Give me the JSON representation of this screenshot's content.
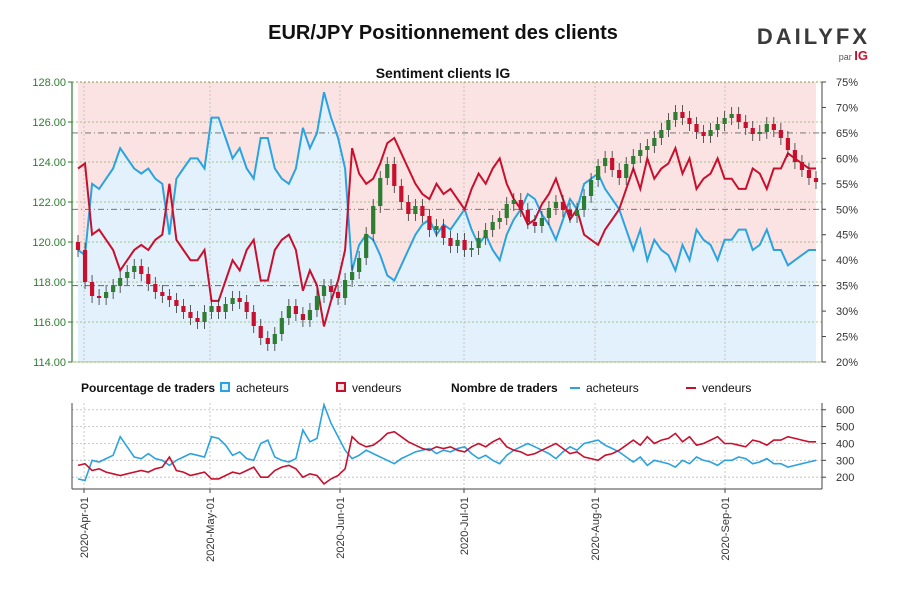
{
  "header": {
    "title": "EUR/JPY Positionnement des clients",
    "subtitle": "Sentiment clients IG",
    "logo_brand": "DAILYFX",
    "logo_sub": "par",
    "logo_ig": "IG"
  },
  "colors": {
    "buyers": "#2ba3e0",
    "sellers": "#c8102e",
    "buyers_fill": "#e2f1fb",
    "sellers_fill": "#fbe3e3",
    "candle_up": "#2e7d32",
    "candle_down": "#c8102e",
    "left_axis": "#2e7d32"
  },
  "legend": {
    "pct_title": "Pourcentage de traders",
    "pct_buyers": "acheteurs",
    "pct_sellers": "vendeurs",
    "count_title": "Nombre de traders",
    "count_buyers": "acheteurs",
    "count_sellers": "vendeurs"
  },
  "chart_data": [
    {
      "type": "candlestick",
      "title": "Sentiment clients IG",
      "price_axis": {
        "ylim": [
          114,
          128
        ],
        "ticks": [
          "114.00",
          "116.00",
          "118.00",
          "120.00",
          "122.00",
          "124.00",
          "126.00",
          "128.00"
        ]
      },
      "pct_axis": {
        "ylim": [
          20,
          75
        ],
        "ticks": [
          "20%",
          "25%",
          "30%",
          "35%",
          "40%",
          "45%",
          "50%",
          "55%",
          "60%",
          "65%",
          "70%",
          "75%"
        ]
      },
      "x_ticks": [
        "2020-Apr-01",
        "2020-May-01",
        "2020-Jun-01",
        "2020-Jul-01",
        "2020-Aug-01",
        "2020-Sep-01"
      ],
      "close": [
        119.6,
        118.0,
        117.3,
        117.2,
        117.5,
        117.8,
        118.2,
        118.5,
        118.8,
        118.4,
        117.9,
        117.5,
        117.3,
        117.1,
        116.8,
        116.5,
        116.2,
        116.0,
        116.5,
        116.8,
        116.5,
        116.9,
        117.2,
        117.0,
        116.5,
        115.8,
        115.2,
        114.9,
        115.4,
        116.2,
        116.8,
        116.4,
        116.1,
        116.6,
        117.3,
        117.8,
        117.5,
        117.2,
        118.1,
        118.5,
        119.2,
        120.4,
        121.8,
        123.2,
        123.9,
        122.8,
        122.0,
        121.4,
        121.8,
        121.3,
        120.6,
        120.8,
        120.2,
        119.8,
        120.1,
        119.6,
        119.7,
        120.2,
        120.6,
        121.0,
        121.2,
        121.9,
        122.1,
        121.6,
        121.0,
        120.8,
        121.2,
        121.7,
        122.0,
        121.6,
        121.3,
        121.6,
        122.3,
        123.1,
        123.8,
        124.2,
        123.6,
        123.2,
        123.9,
        124.3,
        124.6,
        124.8,
        125.2,
        125.6,
        126.1,
        126.5,
        126.2,
        125.9,
        125.5,
        125.3,
        125.6,
        125.9,
        126.2,
        126.4,
        126.0,
        125.7,
        125.4,
        125.5,
        125.9,
        125.6,
        125.2,
        124.6,
        124.0,
        123.6,
        123.2,
        123.0
      ],
      "pct_buyers": [
        42,
        41,
        55,
        54,
        56,
        58,
        62,
        60,
        58,
        57,
        58,
        56,
        55,
        45,
        56,
        58,
        60,
        60,
        58,
        68,
        68,
        64,
        60,
        62,
        58,
        56,
        64,
        64,
        58,
        56,
        55,
        58,
        66,
        62,
        65,
        73,
        68,
        64,
        58,
        38,
        43,
        45,
        44,
        41,
        37,
        36,
        39,
        42,
        45,
        47,
        48,
        45,
        47,
        46,
        48,
        50,
        46,
        43,
        45,
        42,
        40,
        45,
        48,
        50,
        53,
        52,
        49,
        47,
        44,
        48,
        52,
        50,
        55,
        56,
        57,
        54,
        52,
        50,
        46,
        42,
        46,
        40,
        44,
        42,
        41,
        38,
        43,
        40,
        46,
        44,
        43,
        40,
        44,
        44,
        46,
        46,
        42,
        43,
        46,
        42,
        42,
        39,
        40,
        41,
        42,
        42
      ],
      "pct_sellers": [
        58,
        59,
        45,
        46,
        44,
        42,
        38,
        40,
        42,
        43,
        42,
        44,
        45,
        55,
        44,
        42,
        40,
        40,
        42,
        32,
        32,
        36,
        40,
        38,
        42,
        44,
        36,
        36,
        42,
        44,
        45,
        42,
        34,
        38,
        35,
        27,
        32,
        36,
        42,
        62,
        57,
        55,
        56,
        59,
        63,
        64,
        61,
        58,
        55,
        53,
        52,
        55,
        53,
        54,
        52,
        50,
        54,
        57,
        55,
        58,
        60,
        55,
        52,
        50,
        47,
        48,
        51,
        53,
        56,
        52,
        48,
        50,
        45,
        44,
        43,
        46,
        48,
        50,
        54,
        58,
        54,
        60,
        56,
        58,
        59,
        62,
        57,
        60,
        54,
        56,
        57,
        60,
        56,
        56,
        54,
        54,
        58,
        57,
        54,
        58,
        58,
        61,
        60,
        59,
        58,
        58
      ]
    },
    {
      "type": "line",
      "title": "Nombre de traders",
      "ylim": [
        130,
        640
      ],
      "ticks": [
        "200",
        "300",
        "400",
        "500",
        "600"
      ],
      "series": [
        {
          "name": "acheteurs",
          "values": [
            190,
            180,
            300,
            290,
            310,
            330,
            440,
            380,
            320,
            310,
            340,
            310,
            300,
            270,
            300,
            320,
            340,
            330,
            320,
            440,
            430,
            390,
            330,
            350,
            310,
            300,
            400,
            420,
            320,
            300,
            290,
            310,
            480,
            410,
            430,
            630,
            520,
            440,
            360,
            310,
            330,
            360,
            340,
            320,
            300,
            280,
            310,
            330,
            350,
            360,
            370,
            340,
            360,
            350,
            370,
            380,
            340,
            310,
            330,
            300,
            280,
            330,
            360,
            380,
            400,
            380,
            360,
            340,
            310,
            350,
            380,
            360,
            400,
            410,
            420,
            390,
            370,
            350,
            320,
            290,
            320,
            270,
            300,
            290,
            280,
            260,
            300,
            280,
            320,
            300,
            290,
            270,
            300,
            300,
            320,
            310,
            280,
            290,
            310,
            280,
            280,
            260,
            270,
            280,
            290,
            300
          ]
        },
        {
          "name": "vendeurs",
          "values": [
            270,
            280,
            240,
            250,
            230,
            220,
            210,
            220,
            230,
            240,
            230,
            250,
            260,
            320,
            240,
            230,
            210,
            220,
            230,
            190,
            190,
            210,
            230,
            220,
            240,
            260,
            200,
            200,
            240,
            260,
            270,
            250,
            200,
            220,
            210,
            160,
            190,
            210,
            250,
            440,
            400,
            380,
            390,
            420,
            460,
            470,
            440,
            410,
            390,
            370,
            360,
            380,
            370,
            380,
            360,
            350,
            380,
            400,
            380,
            410,
            430,
            380,
            360,
            350,
            330,
            340,
            360,
            380,
            400,
            370,
            340,
            350,
            320,
            310,
            300,
            330,
            340,
            360,
            390,
            420,
            390,
            440,
            400,
            420,
            430,
            460,
            410,
            440,
            390,
            400,
            420,
            440,
            400,
            400,
            390,
            380,
            420,
            410,
            390,
            420,
            420,
            440,
            430,
            420,
            410,
            410
          ]
        }
      ]
    }
  ]
}
